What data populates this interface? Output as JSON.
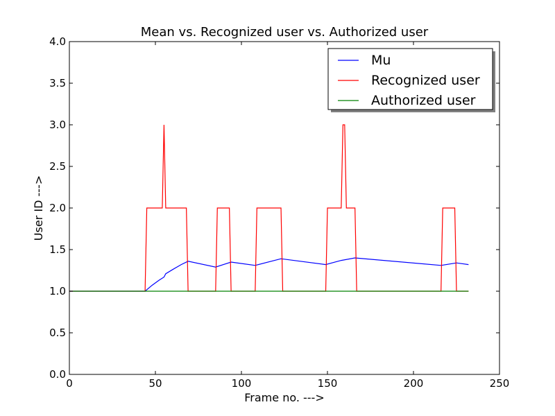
{
  "chart_data": {
    "type": "line",
    "title": "Mean vs. Recognized user vs. Authorized user",
    "xlabel": "Frame no. --->",
    "ylabel": "User ID --->",
    "xlim": [
      0,
      250
    ],
    "ylim": [
      0.0,
      4.0
    ],
    "xticks": [
      0,
      50,
      100,
      150,
      200,
      250
    ],
    "yticks": [
      0.0,
      0.5,
      1.0,
      1.5,
      2.0,
      2.5,
      3.0,
      3.5,
      4.0
    ],
    "xtick_labels": [
      "0",
      "50",
      "100",
      "150",
      "200",
      "250"
    ],
    "ytick_labels": [
      "0.0",
      "0.5",
      "1.0",
      "1.5",
      "2.0",
      "2.5",
      "3.0",
      "3.5",
      "4.0"
    ],
    "grid": false,
    "legend_position": "upper right",
    "series": [
      {
        "name": "Mu",
        "color": "#0000ff",
        "x": [
          0,
          44,
          48,
          52,
          55,
          56,
          60,
          65,
          69,
          85,
          94,
          108,
          123,
          149,
          158,
          166,
          216,
          225,
          232
        ],
        "y": [
          1.0,
          1.0,
          1.07,
          1.13,
          1.17,
          1.21,
          1.26,
          1.32,
          1.36,
          1.29,
          1.35,
          1.31,
          1.39,
          1.32,
          1.37,
          1.4,
          1.31,
          1.34,
          1.32
        ]
      },
      {
        "name": "Recognized user",
        "color": "#ff0000",
        "x": [
          0,
          44,
          45,
          54,
          55,
          56,
          68,
          69,
          85,
          86,
          93,
          94,
          108,
          109,
          123,
          124,
          149,
          150,
          158,
          159,
          160,
          161,
          166,
          167,
          216,
          217,
          224,
          225,
          232
        ],
        "y": [
          1,
          1,
          2,
          2,
          3,
          2,
          2,
          1,
          1,
          2,
          2,
          1,
          1,
          2,
          2,
          1,
          1,
          2,
          2,
          3,
          3,
          2,
          2,
          1,
          1,
          2,
          2,
          1,
          1
        ]
      },
      {
        "name": "Authorized user",
        "color": "#008000",
        "x": [
          0,
          232
        ],
        "y": [
          1,
          1
        ]
      }
    ]
  }
}
